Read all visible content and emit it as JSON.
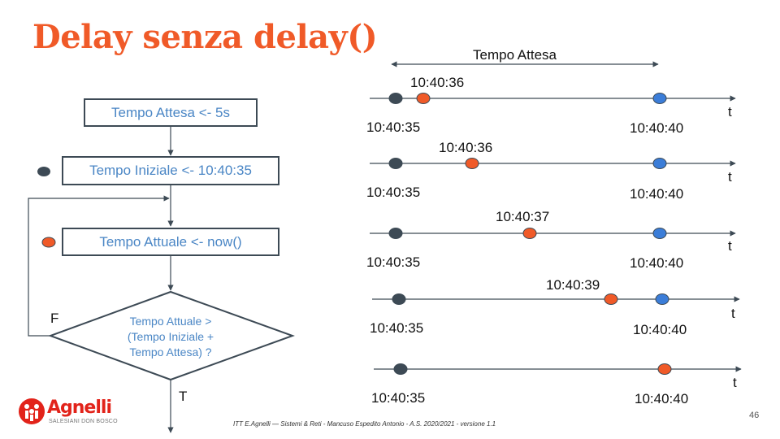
{
  "title": "Delay senza delay()",
  "flowchart": {
    "box1": "Tempo Attesa <- 5s",
    "box2": "Tempo Iniziale <- 10:40:35",
    "box3": "Tempo Attuale <- now()",
    "decision_lines": [
      "Tempo Attuale >",
      "(Tempo Iniziale   +",
      "Tempo Attesa) ?"
    ],
    "false_label": "F",
    "true_label": "T"
  },
  "timeline": {
    "wait_label": "Tempo Attesa",
    "t_label": "t",
    "rows": [
      {
        "start": "10:40:35",
        "current": "10:40:36",
        "end": "10:40:40"
      },
      {
        "start": "10:40:35",
        "current": "10:40:36",
        "end": "10:40:40"
      },
      {
        "start": "10:40:35",
        "current": "10:40:37",
        "end": "10:40:40"
      },
      {
        "start": "10:40:35",
        "current": "10:40:39",
        "end": "10:40:40"
      },
      {
        "start": "10:40:35",
        "current": "",
        "end": "10:40:40"
      }
    ]
  },
  "colors": {
    "title": "#f05a28",
    "start_dot": "#3d4a55",
    "current_dot": "#f05a28",
    "end_dot": "#3b7dd8",
    "box_text": "#4a86c5"
  },
  "footer": "ITT E.Agnelli — Sistemi & Reti - Mancuso Espedito Antonio - A.S. 2020/2021 - versione 1.1",
  "page_number": "46",
  "logo": {
    "name": "Agnelli",
    "subtitle": "SALESIANI DON BOSCO"
  }
}
